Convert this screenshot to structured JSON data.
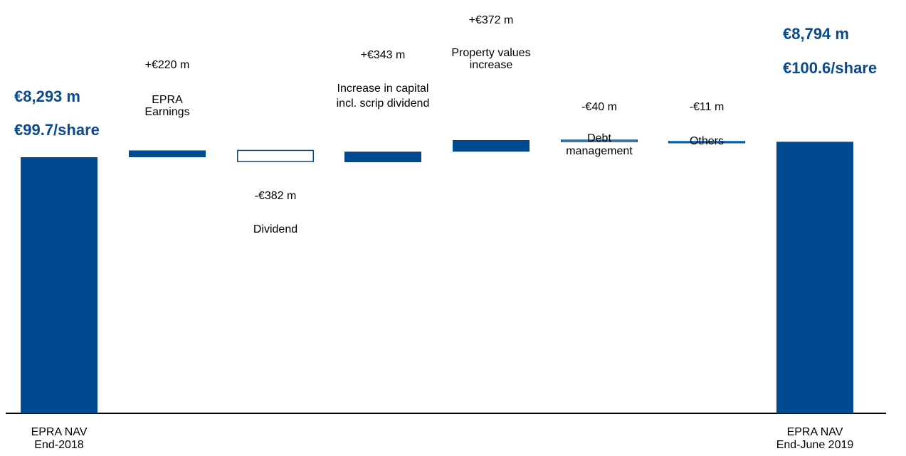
{
  "colors": {
    "accent": "#004a8f",
    "axis": "#000000",
    "highlight_text": "#0b4a8c"
  },
  "chart_data": {
    "type": "waterfall",
    "unit": "€ m",
    "ylim": [
      0,
      9000
    ],
    "grid": false,
    "steps": [
      {
        "id": "start",
        "kind": "total",
        "value": 8293,
        "category": [
          "EPRA NAV",
          "End-2018"
        ],
        "value_label": "€8,293 m",
        "sub_label": "€99.7/share"
      },
      {
        "id": "epra-earnings",
        "kind": "increase",
        "value": 220,
        "value_label": "+€220 m",
        "label": [
          "EPRA",
          "Earnings"
        ]
      },
      {
        "id": "dividend",
        "kind": "decrease",
        "value": -382,
        "value_label": "-€382 m",
        "label": [
          "Dividend"
        ]
      },
      {
        "id": "capital-increase",
        "kind": "increase",
        "value": 343,
        "value_label": "+€343 m",
        "label": [
          "Increase in capital",
          "incl. scrip dividend"
        ]
      },
      {
        "id": "property-values",
        "kind": "increase",
        "value": 372,
        "value_label": "+€372 m",
        "label": [
          "Property values",
          "increase"
        ]
      },
      {
        "id": "debt-management",
        "kind": "decrease",
        "value": -40,
        "value_label": "-€40 m",
        "label": [
          "Debt",
          "management"
        ]
      },
      {
        "id": "others",
        "kind": "decrease",
        "value": -11,
        "value_label": "-€11 m",
        "label": [
          "Others"
        ]
      },
      {
        "id": "end",
        "kind": "total",
        "value": 8794,
        "category": [
          "EPRA NAV",
          "End-June 2019"
        ],
        "value_label": "€8,794 m",
        "sub_label": "€100.6/share"
      }
    ]
  }
}
